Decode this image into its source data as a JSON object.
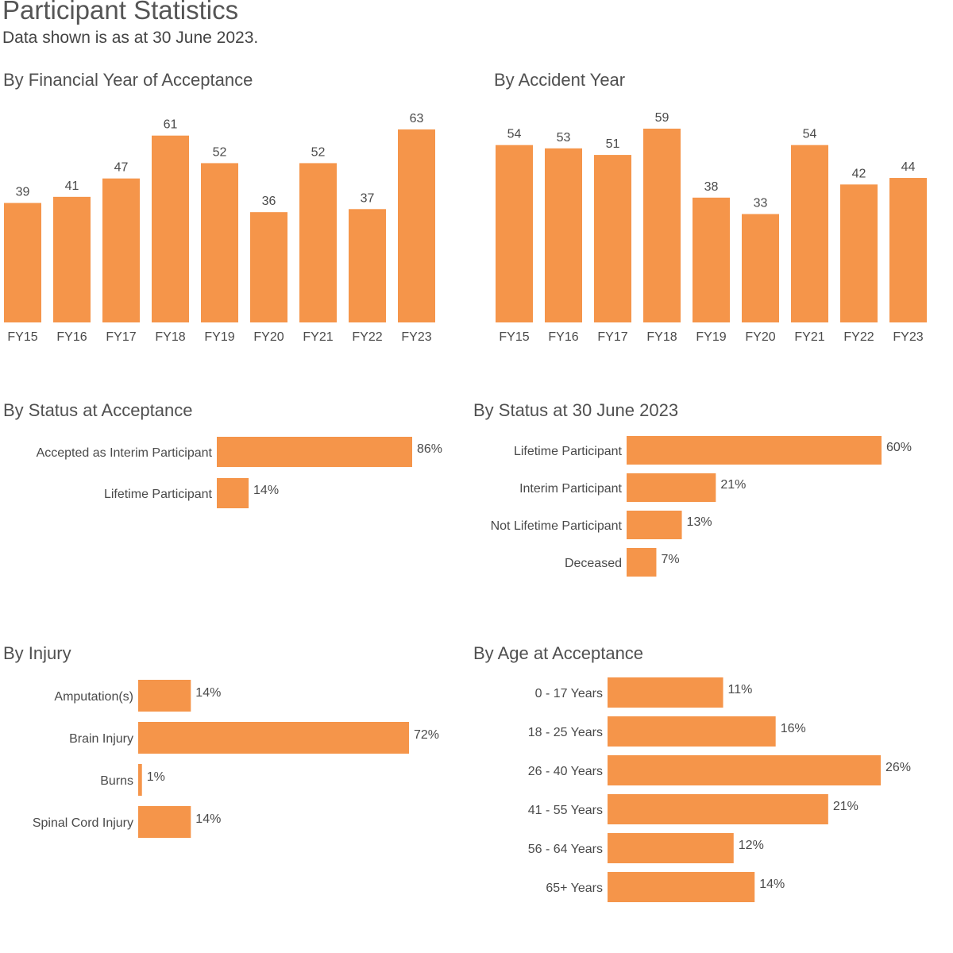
{
  "header": {
    "title": "Participant Statistics",
    "subtitle": "Data shown is as at 30 June 2023."
  },
  "colors": {
    "bar": "#f5954a",
    "text": "#4a4a4a"
  },
  "chart_data": [
    {
      "id": "fy",
      "type": "bar",
      "title": "By Financial Year of Acceptance",
      "categories": [
        "FY15",
        "FY16",
        "FY17",
        "FY18",
        "FY19",
        "FY20",
        "FY21",
        "FY22",
        "FY23"
      ],
      "values": [
        39,
        41,
        47,
        61,
        52,
        36,
        52,
        37,
        63
      ],
      "data_labels": [
        "39",
        "41",
        "47",
        "61",
        "52",
        "36",
        "52",
        "37",
        "63"
      ],
      "ylim": [
        0,
        63
      ]
    },
    {
      "id": "ay",
      "type": "bar",
      "title": "By Accident Year",
      "categories": [
        "FY15",
        "FY16",
        "FY17",
        "FY18",
        "FY19",
        "FY20",
        "FY21",
        "FY22",
        "FY23"
      ],
      "values": [
        54,
        53,
        51,
        59,
        38,
        33,
        54,
        42,
        44
      ],
      "data_labels": [
        "54",
        "53",
        "51",
        "59",
        "38",
        "33",
        "54",
        "42",
        "44"
      ],
      "ylim": [
        0,
        59
      ]
    },
    {
      "id": "statacc",
      "type": "bar",
      "orientation": "horizontal",
      "title": "By Status at Acceptance",
      "categories": [
        "Accepted as Interim Participant",
        "Lifetime Participant"
      ],
      "values": [
        86,
        14
      ],
      "data_labels": [
        "86%",
        "14%"
      ],
      "xlim": [
        0,
        86
      ]
    },
    {
      "id": "stat2023",
      "type": "bar",
      "orientation": "horizontal",
      "title": "By Status at 30 June 2023",
      "categories": [
        "Lifetime Participant",
        "Interim Participant",
        "Not Lifetime Participant",
        "Deceased"
      ],
      "values": [
        60,
        21,
        13,
        7
      ],
      "data_labels": [
        "60%",
        "21%",
        "13%",
        "7%"
      ],
      "xlim": [
        0,
        60
      ]
    },
    {
      "id": "injury",
      "type": "bar",
      "orientation": "horizontal",
      "title": "By Injury",
      "categories": [
        "Amputation(s)",
        "Brain Injury",
        "Burns",
        "Spinal Cord Injury"
      ],
      "values": [
        14,
        72,
        1,
        14
      ],
      "data_labels": [
        "14%",
        "72%",
        "1%",
        "14%"
      ],
      "xlim": [
        0,
        72
      ]
    },
    {
      "id": "age",
      "type": "bar",
      "orientation": "horizontal",
      "title": "By Age at Acceptance",
      "categories": [
        "0 - 17 Years",
        "18 - 25 Years",
        "26 - 40 Years",
        "41 - 55 Years",
        "56 - 64 Years",
        "65+ Years"
      ],
      "values": [
        11,
        16,
        26,
        21,
        12,
        14
      ],
      "data_labels": [
        "11%",
        "16%",
        "26%",
        "21%",
        "12%",
        "14%"
      ],
      "xlim": [
        0,
        26
      ]
    }
  ]
}
